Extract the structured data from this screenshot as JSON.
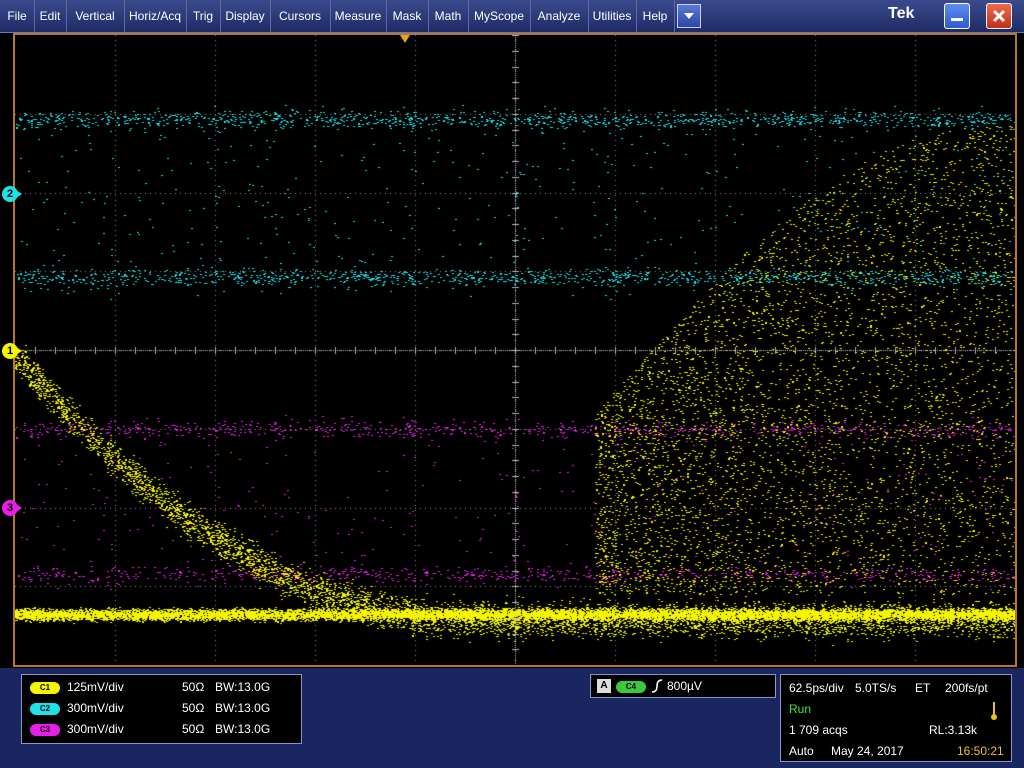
{
  "menu": {
    "items": [
      "File",
      "Edit",
      "Vertical",
      "Horiz/Acq",
      "Trig",
      "Display",
      "Cursors",
      "Measure",
      "Mask",
      "Math",
      "MyScope",
      "Analyze",
      "Utilities",
      "Help"
    ],
    "brand": "Tek"
  },
  "colors": {
    "ch1": "#f5f500",
    "ch2": "#1ee0e8",
    "ch3": "#e81ee8",
    "ch4": "#3cc83c",
    "frame": "#b8762a"
  },
  "channels": [
    {
      "badge": "C1",
      "scale": "125mV/div",
      "impedance": "50Ω",
      "bw": "W:13.0G",
      "bw_prefix": "B"
    },
    {
      "badge": "C2",
      "scale": "300mV/div",
      "impedance": "50Ω",
      "bw": "W:13.0G",
      "bw_prefix": "B"
    },
    {
      "badge": "C3",
      "scale": "300mV/div",
      "impedance": "50Ω",
      "bw": "W:13.0G",
      "bw_prefix": "B"
    }
  ],
  "markers": {
    "ch1": "1",
    "ch2": "2",
    "ch3": "3"
  },
  "trigger": {
    "mode_letter": "A",
    "source": "C4",
    "level": "800µV"
  },
  "horizontal": {
    "scale": "62.5ps/div",
    "rate": "5.0TS/s",
    "mode": "ET",
    "resolution": "200fs/pt",
    "state": "Run",
    "acqs": "1 709 acqs",
    "record_length": "RL:3.13k",
    "trigger_mode": "Auto",
    "date": "May 24, 2017",
    "time": "16:50:21"
  }
}
